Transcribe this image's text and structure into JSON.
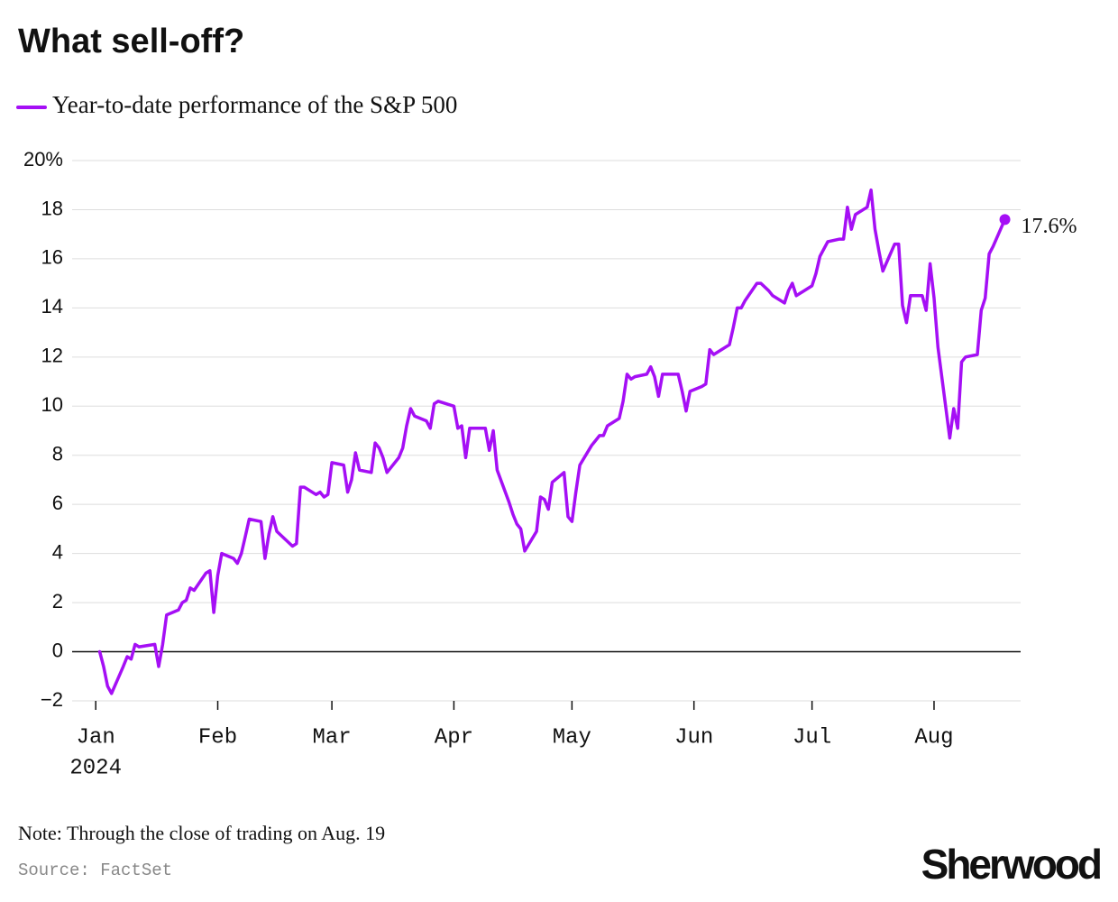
{
  "chart_data": {
    "type": "line",
    "title": "What sell-off?",
    "series": [
      {
        "name": "Year-to-date performance of the S&P 500",
        "color": "#a50ff5",
        "values": [
          0,
          -0.6,
          -1.4,
          -1.7,
          -0.6,
          -0.2,
          -0.3,
          0.3,
          0.2,
          0.3,
          -0.6,
          0.3,
          1.5,
          1.7,
          2.0,
          2.1,
          2.6,
          2.5,
          3.2,
          3.3,
          1.6,
          3.1,
          4.0,
          3.8,
          3.6,
          4.0,
          4.7,
          5.4,
          5.3,
          3.8,
          4.8,
          5.5,
          4.9,
          4.3,
          4.4,
          6.7,
          6.7,
          6.4,
          6.5,
          6.3,
          6.4,
          7.7,
          7.6,
          6.5,
          7.0,
          8.1,
          7.4,
          7.3,
          8.5,
          8.3,
          7.9,
          7.3,
          7.9,
          8.3,
          9.2,
          9.9,
          9.6,
          9.4,
          9.1,
          10.1,
          10.2,
          10.0,
          9.1,
          9.2,
          7.9,
          9.1,
          9.1,
          9.1,
          8.2,
          9.0,
          7.4,
          6.1,
          5.6,
          5.2,
          5.0,
          4.1,
          4.9,
          6.3,
          6.2,
          5.8,
          6.9,
          7.3,
          5.5,
          5.3,
          6.5,
          7.6,
          8.4,
          8.6,
          8.8,
          8.8,
          9.2,
          9.5,
          10.2,
          11.3,
          11.1,
          11.2,
          11.3,
          11.6,
          11.2,
          10.4,
          11.3,
          11.3,
          10.6,
          9.8,
          10.6,
          10.8,
          10.9,
          12.3,
          12.1,
          12.2,
          12.5,
          13.2,
          14.0,
          14.0,
          14.3,
          15.0,
          15.0,
          14.7,
          14.5,
          14.2,
          14.7,
          15.0,
          14.5,
          14.6,
          14.9,
          15.4,
          16.1,
          16.7,
          16.8,
          16.8,
          18.1,
          17.2,
          17.8,
          18.1,
          18.8,
          17.2,
          16.3,
          15.5,
          16.6,
          16.6,
          14.1,
          13.4,
          14.5,
          14.5,
          13.9,
          15.8,
          14.4,
          12.4,
          8.7,
          9.9,
          9.1,
          11.8,
          12.0,
          12.1,
          13.9,
          14.4,
          16.2,
          16.5,
          17.6
        ]
      }
    ],
    "x": [
      "2024-01-02",
      "2024-01-03",
      "2024-01-04",
      "2024-01-05",
      "2024-01-08",
      "2024-01-09",
      "2024-01-10",
      "2024-01-11",
      "2024-01-12",
      "2024-01-16",
      "2024-01-17",
      "2024-01-18",
      "2024-01-19",
      "2024-01-22",
      "2024-01-23",
      "2024-01-24",
      "2024-01-25",
      "2024-01-26",
      "2024-01-29",
      "2024-01-30",
      "2024-01-31",
      "2024-02-01",
      "2024-02-02",
      "2024-02-05",
      "2024-02-06",
      "2024-02-07",
      "2024-02-08",
      "2024-02-09",
      "2024-02-12",
      "2024-02-13",
      "2024-02-14",
      "2024-02-15",
      "2024-02-16",
      "2024-02-20",
      "2024-02-21",
      "2024-02-22",
      "2024-02-23",
      "2024-02-26",
      "2024-02-27",
      "2024-02-28",
      "2024-02-29",
      "2024-03-01",
      "2024-03-04",
      "2024-03-05",
      "2024-03-06",
      "2024-03-07",
      "2024-03-08",
      "2024-03-11",
      "2024-03-12",
      "2024-03-13",
      "2024-03-14",
      "2024-03-15",
      "2024-03-18",
      "2024-03-19",
      "2024-03-20",
      "2024-03-21",
      "2024-03-22",
      "2024-03-25",
      "2024-03-26",
      "2024-03-27",
      "2024-03-28",
      "2024-04-01",
      "2024-04-02",
      "2024-04-03",
      "2024-04-04",
      "2024-04-05",
      "2024-04-08",
      "2024-04-09",
      "2024-04-10",
      "2024-04-11",
      "2024-04-12",
      "2024-04-15",
      "2024-04-16",
      "2024-04-17",
      "2024-04-18",
      "2024-04-19",
      "2024-04-22",
      "2024-04-23",
      "2024-04-24",
      "2024-04-25",
      "2024-04-26",
      "2024-04-29",
      "2024-04-30",
      "2024-05-01",
      "2024-05-02",
      "2024-05-03",
      "2024-05-06",
      "2024-05-07",
      "2024-05-08",
      "2024-05-09",
      "2024-05-10",
      "2024-05-13",
      "2024-05-14",
      "2024-05-15",
      "2024-05-16",
      "2024-05-17",
      "2024-05-20",
      "2024-05-21",
      "2024-05-22",
      "2024-05-23",
      "2024-05-24",
      "2024-05-28",
      "2024-05-29",
      "2024-05-30",
      "2024-05-31",
      "2024-06-03",
      "2024-06-04",
      "2024-06-05",
      "2024-06-06",
      "2024-06-07",
      "2024-06-10",
      "2024-06-11",
      "2024-06-12",
      "2024-06-13",
      "2024-06-14",
      "2024-06-17",
      "2024-06-18",
      "2024-06-20",
      "2024-06-21",
      "2024-06-24",
      "2024-06-25",
      "2024-06-26",
      "2024-06-27",
      "2024-06-28",
      "2024-07-01",
      "2024-07-02",
      "2024-07-03",
      "2024-07-05",
      "2024-07-08",
      "2024-07-09",
      "2024-07-10",
      "2024-07-11",
      "2024-07-12",
      "2024-07-15",
      "2024-07-16",
      "2024-07-17",
      "2024-07-18",
      "2024-07-19",
      "2024-07-22",
      "2024-07-23",
      "2024-07-24",
      "2024-07-25",
      "2024-07-26",
      "2024-07-29",
      "2024-07-30",
      "2024-07-31",
      "2024-08-01",
      "2024-08-02",
      "2024-08-05",
      "2024-08-06",
      "2024-08-07",
      "2024-08-08",
      "2024-08-09",
      "2024-08-12",
      "2024-08-13",
      "2024-08-14",
      "2024-08-15",
      "2024-08-16",
      "2024-08-19"
    ],
    "end_label": "17.6%",
    "xlim": [
      "2023-12-26",
      "2024-08-23"
    ],
    "xticks": [
      {
        "value": "2024-01-01",
        "label": "Jan"
      },
      {
        "value": "2024-02-01",
        "label": "Feb"
      },
      {
        "value": "2024-03-01",
        "label": "Mar"
      },
      {
        "value": "2024-04-01",
        "label": "Apr"
      },
      {
        "value": "2024-05-01",
        "label": "May"
      },
      {
        "value": "2024-06-01",
        "label": "Jun"
      },
      {
        "value": "2024-07-01",
        "label": "Jul"
      },
      {
        "value": "2024-08-01",
        "label": "Aug"
      }
    ],
    "x_year_label": "2024",
    "ylim": [
      -2,
      20
    ],
    "yticks": [
      {
        "value": -2,
        "label": "−2"
      },
      0,
      2,
      4,
      6,
      8,
      10,
      12,
      14,
      16,
      18,
      {
        "value": 20,
        "label": "20%"
      }
    ],
    "grid": true,
    "note": "Note: Through the close of trading on Aug. 19",
    "source": "Source: FactSet",
    "brand": "Sherwood"
  }
}
